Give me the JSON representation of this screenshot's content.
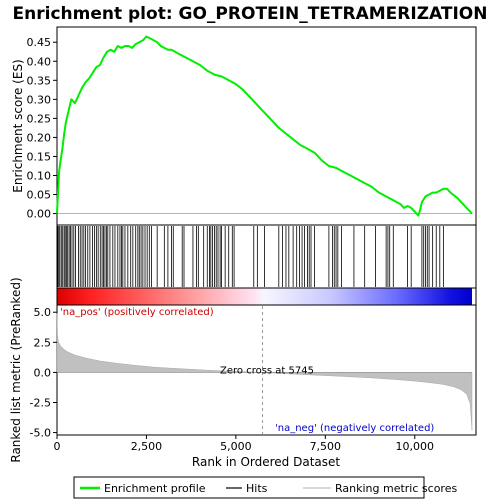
{
  "chart_data": {
    "type": "line",
    "title": "Enrichment plot: GO_PROTEIN_TETRAMERIZATION",
    "panels": {
      "enrichment": {
        "ylabel": "Enrichment score (ES)",
        "ylim": [
          -0.03,
          0.49
        ],
        "yticks": [
          0.0,
          0.05,
          0.1,
          0.15,
          0.2,
          0.25,
          0.3,
          0.35,
          0.4,
          0.45
        ],
        "ytick_labels": [
          "0.00",
          "0.05",
          "0.10",
          "0.15",
          "0.20",
          "0.25",
          "0.30",
          "0.35",
          "0.40",
          "0.45"
        ],
        "series": [
          {
            "name": "Enrichment profile",
            "color": "#00ee00",
            "x": [
              0,
              30,
              60,
              100,
              150,
              200,
              250,
              300,
              350,
              400,
              500,
              600,
              700,
              800,
              900,
              1000,
              1100,
              1200,
              1300,
              1400,
              1500,
              1600,
              1700,
              1800,
              1900,
              2000,
              2100,
              2200,
              2300,
              2400,
              2500,
              2600,
              2700,
              2800,
              2900,
              3000,
              3100,
              3200,
              3300,
              3400,
              3600,
              3800,
              4000,
              4200,
              4400,
              4600,
              4800,
              5000,
              5200,
              5400,
              5600,
              5800,
              6000,
              6200,
              6400,
              6600,
              6800,
              7000,
              7200,
              7400,
              7600,
              7800,
              8000,
              8200,
              8400,
              8600,
              8800,
              9000,
              9200,
              9400,
              9600,
              9700,
              9800,
              9900,
              10000,
              10100,
              10150,
              10200,
              10300,
              10400,
              10500,
              10600,
              10700,
              10800,
              10900,
              11000,
              11200,
              11400,
              11600
            ],
            "y": [
              0.0,
              0.06,
              0.11,
              0.14,
              0.17,
              0.21,
              0.24,
              0.26,
              0.28,
              0.3,
              0.29,
              0.31,
              0.33,
              0.345,
              0.355,
              0.37,
              0.385,
              0.39,
              0.41,
              0.425,
              0.43,
              0.425,
              0.44,
              0.435,
              0.44,
              0.44,
              0.435,
              0.445,
              0.45,
              0.455,
              0.465,
              0.46,
              0.455,
              0.45,
              0.44,
              0.435,
              0.43,
              0.43,
              0.425,
              0.42,
              0.41,
              0.4,
              0.39,
              0.375,
              0.365,
              0.36,
              0.35,
              0.34,
              0.325,
              0.305,
              0.285,
              0.265,
              0.245,
              0.225,
              0.21,
              0.195,
              0.18,
              0.17,
              0.16,
              0.14,
              0.125,
              0.12,
              0.11,
              0.1,
              0.09,
              0.08,
              0.07,
              0.055,
              0.045,
              0.035,
              0.025,
              0.015,
              0.02,
              0.015,
              0.005,
              -0.005,
              0.01,
              0.03,
              0.045,
              0.05,
              0.055,
              0.055,
              0.06,
              0.065,
              0.065,
              0.055,
              0.04,
              0.02,
              0.0
            ]
          }
        ]
      },
      "ranked_metric": {
        "ylabel": "Ranked list metric (PreRanked)",
        "xlabel": "Rank in Ordered Dataset",
        "ylim": [
          -5.2,
          5.6
        ],
        "yticks": [
          -5.0,
          -2.5,
          0.0,
          2.5,
          5.0
        ],
        "ytick_labels": [
          "-5.0",
          "-2.5",
          "0.0",
          "2.5",
          "5.0"
        ],
        "xlim": [
          0,
          11600
        ],
        "xticks": [
          0,
          2500,
          5000,
          7500,
          10000
        ],
        "xtick_labels": [
          "0",
          "2,500",
          "5,000",
          "7,500",
          "10,000"
        ],
        "zero_cross_label": "Zero cross at 5745",
        "zero_cross_rank": 5745,
        "pos_label": "'na_pos' (positively correlated)",
        "neg_label": "'na_neg' (negatively correlated)",
        "series": [
          {
            "name": "Ranking metric scores",
            "color": "#c0c0c0",
            "x": [
              0,
              10,
              30,
              60,
              100,
              200,
              300,
              500,
              800,
              1200,
              1700,
              2200,
              2800,
              3500,
              4200,
              5000,
              5745,
              6500,
              7200,
              8000,
              8800,
              9500,
              10000,
              10400,
              10800,
              11100,
              11300,
              11450,
              11550,
              11600
            ],
            "y": [
              4.9,
              3.2,
              2.7,
              2.4,
              2.2,
              1.9,
              1.7,
              1.45,
              1.2,
              0.95,
              0.75,
              0.58,
              0.42,
              0.3,
              0.18,
              0.08,
              0.0,
              -0.12,
              -0.22,
              -0.33,
              -0.46,
              -0.6,
              -0.72,
              -0.85,
              -1.0,
              -1.2,
              -1.45,
              -1.8,
              -2.6,
              -4.8
            ]
          }
        ]
      }
    },
    "hits": [
      0,
      20,
      50,
      80,
      120,
      160,
      200,
      230,
      270,
      300,
      340,
      380,
      420,
      470,
      520,
      600,
      650,
      700,
      750,
      800,
      860,
      920,
      990,
      1050,
      1100,
      1150,
      1210,
      1260,
      1300,
      1340,
      1380,
      1420,
      1480,
      1560,
      1620,
      1700,
      1760,
      1800,
      1840,
      1900,
      1980,
      2060,
      2120,
      2200,
      2260,
      2300,
      2350,
      2400,
      2460,
      2520,
      2580,
      2640,
      2800,
      3000,
      3100,
      3200,
      3250,
      3500,
      3550,
      3800,
      3900,
      3950,
      4100,
      4200,
      4260,
      4300,
      4350,
      4400,
      4450,
      4500,
      4560,
      4600,
      4700,
      4800,
      4900,
      4950,
      5500,
      5600,
      5800,
      6200,
      6300,
      6400,
      6480,
      6600,
      6700,
      6780,
      6850,
      6920,
      7000,
      7050,
      7100,
      7200,
      7600,
      7700,
      7750,
      7800,
      7850,
      7950,
      8300,
      8600,
      8900,
      9200,
      9250,
      9300,
      9400,
      9800,
      9900,
      10200,
      10250,
      10300,
      10350,
      10400,
      10500,
      10600,
      10700,
      10800
    ],
    "heatmap_colors": {
      "positive": "#ff0000",
      "neutral": "#ffffff",
      "negative": "#0000ff"
    },
    "legend": {
      "placement": "bottom",
      "entries": [
        {
          "label": "Enrichment profile",
          "color": "#00ee00",
          "style": "line"
        },
        {
          "label": "Hits",
          "color": "#000000",
          "style": "line"
        },
        {
          "label": "Ranking metric scores",
          "color": "#c0c0c0",
          "style": "line"
        }
      ]
    }
  }
}
